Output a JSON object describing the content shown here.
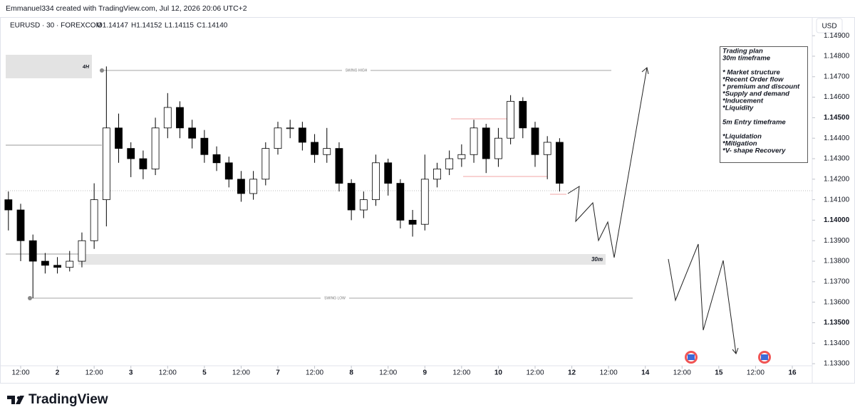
{
  "watermark": "Emmanuel334 created with TradingView.com, Jul 12, 2026 20:06 UTC+2",
  "symbol": "EURUSD · 30 · FOREXCOM",
  "ohlc": [
    "O1.14147",
    "H1.14152",
    "L1.14115",
    "C1.14140"
  ],
  "currency": "USD",
  "logo": "TradingView",
  "chart_data": {
    "type": "candlestick",
    "ylim": [
      1.13217,
      1.1497
    ],
    "yticks": [
      {
        "value": 1.149,
        "label": "1.14900"
      },
      {
        "value": 1.148,
        "label": "1.14800"
      },
      {
        "value": 1.147,
        "label": "1.14700"
      },
      {
        "value": 1.146,
        "label": "1.14600"
      },
      {
        "value": 1.145,
        "label": "1.14500"
      },
      {
        "value": 1.144,
        "label": "1.14400"
      },
      {
        "value": 1.143,
        "label": "1.14300"
      },
      {
        "value": 1.142,
        "label": "1.14200"
      },
      {
        "value": 1.141,
        "label": "1.14100"
      },
      {
        "value": 1.14,
        "label": "1.14000"
      },
      {
        "value": 1.139,
        "label": "1.13900"
      },
      {
        "value": 1.138,
        "label": "1.13800"
      },
      {
        "value": 1.137,
        "label": "1.13700"
      },
      {
        "value": 1.136,
        "label": "1.13600"
      },
      {
        "value": 1.135,
        "label": "1.13500"
      },
      {
        "value": 1.134,
        "label": "1.13400"
      },
      {
        "value": 1.133,
        "label": "1.13300"
      }
    ],
    "xlim": [
      -4.9,
      257.9
    ],
    "xticks": [
      {
        "value": 0,
        "label": "12:00"
      },
      {
        "value": 12,
        "label": "2"
      },
      {
        "value": 24,
        "label": "12:00"
      },
      {
        "value": 36,
        "label": "3"
      },
      {
        "value": 48,
        "label": "12:00"
      },
      {
        "value": 60,
        "label": "5"
      },
      {
        "value": 72,
        "label": "12:00"
      },
      {
        "value": 84,
        "label": "7"
      },
      {
        "value": 96,
        "label": "12:00"
      },
      {
        "value": 108,
        "label": "8"
      },
      {
        "value": 120,
        "label": "12:00"
      },
      {
        "value": 132,
        "label": "9"
      },
      {
        "value": 144,
        "label": "12:00"
      },
      {
        "value": 156,
        "label": "10"
      },
      {
        "value": 168,
        "label": "12:00"
      },
      {
        "value": 180,
        "label": "12"
      },
      {
        "value": 192,
        "label": "12:00"
      },
      {
        "value": 204,
        "label": "14"
      },
      {
        "value": 216,
        "label": "12:00"
      },
      {
        "value": 228,
        "label": "15"
      },
      {
        "value": 240,
        "label": "12:00"
      },
      {
        "value": 252,
        "label": "16"
      }
    ],
    "x": [
      -4,
      0,
      4,
      8,
      12,
      16,
      20,
      24,
      28,
      32,
      36,
      40,
      44,
      48,
      52,
      56,
      60,
      64,
      68,
      72,
      76,
      80,
      84,
      88,
      92,
      96,
      100,
      104,
      108,
      112,
      116,
      120,
      124,
      128,
      132,
      136,
      140,
      144,
      148,
      152,
      156,
      160,
      164,
      168,
      172,
      176
    ],
    "open": [
      1.141,
      1.1405,
      1.139,
      1.138,
      1.1378,
      1.1377,
      1.138,
      1.139,
      1.141,
      1.1445,
      1.1435,
      1.143,
      1.1425,
      1.1445,
      1.1455,
      1.1445,
      1.144,
      1.1432,
      1.1428,
      1.142,
      1.1413,
      1.142,
      1.1435,
      1.1445,
      1.1445,
      1.1438,
      1.1432,
      1.1435,
      1.1418,
      1.1405,
      1.141,
      1.1428,
      1.1418,
      1.14,
      1.1398,
      1.142,
      1.1425,
      1.143,
      1.1432,
      1.1445,
      1.143,
      1.144,
      1.1458,
      1.1445,
      1.1432,
      1.1438
    ],
    "high": [
      1.1414,
      1.1408,
      1.1393,
      1.1384,
      1.1382,
      1.1385,
      1.1394,
      1.1418,
      1.1475,
      1.1452,
      1.1438,
      1.1434,
      1.145,
      1.1462,
      1.1458,
      1.1449,
      1.1444,
      1.1436,
      1.1431,
      1.1424,
      1.1424,
      1.1438,
      1.1448,
      1.1449,
      1.1448,
      1.1442,
      1.1445,
      1.1438,
      1.142,
      1.1414,
      1.1432,
      1.143,
      1.142,
      1.1405,
      1.1432,
      1.1428,
      1.1434,
      1.1437,
      1.1449,
      1.1447,
      1.1445,
      1.1461,
      1.146,
      1.1448,
      1.1441,
      1.144
    ],
    "low": [
      1.1395,
      1.138,
      1.1362,
      1.1374,
      1.1374,
      1.1375,
      1.1377,
      1.1386,
      1.1397,
      1.1428,
      1.1421,
      1.142,
      1.1422,
      1.144,
      1.144,
      1.1435,
      1.1428,
      1.1424,
      1.1416,
      1.1409,
      1.141,
      1.1417,
      1.1432,
      1.144,
      1.1434,
      1.1428,
      1.1428,
      1.1414,
      1.14,
      1.1401,
      1.1407,
      1.1412,
      1.1396,
      1.1392,
      1.1395,
      1.1416,
      1.1422,
      1.1426,
      1.1428,
      1.1423,
      1.1426,
      1.1437,
      1.144,
      1.1426,
      1.142,
      1.1414
    ],
    "close": [
      1.1405,
      1.139,
      1.138,
      1.1378,
      1.1377,
      1.138,
      1.139,
      1.141,
      1.1445,
      1.1435,
      1.143,
      1.1425,
      1.1445,
      1.1455,
      1.1445,
      1.144,
      1.1432,
      1.1428,
      1.142,
      1.1413,
      1.142,
      1.1435,
      1.1445,
      1.1445,
      1.1438,
      1.1432,
      1.1435,
      1.1418,
      1.1405,
      1.141,
      1.1428,
      1.1418,
      1.14,
      1.1398,
      1.142,
      1.1425,
      1.143,
      1.1432,
      1.1445,
      1.143,
      1.144,
      1.1458,
      1.1445,
      1.1432,
      1.1438,
      1.1418
    ],
    "up_color": "#ffffff",
    "down_color": "#000000",
    "annotations": {
      "zone_4h": "4H",
      "swing_high": "SWING HIGH",
      "zone_30m": "30m",
      "swing_low": "SWING LOW"
    },
    "plan": [
      [
        "Trading plan",
        "30m timeframe"
      ],
      [
        "* Market structure",
        "*Recent Order flow",
        "* premium and discount",
        "*Supply and demand",
        "*Inducement",
        "*Liquidity"
      ],
      [
        "5m Entry timeframe"
      ],
      [
        "*Liquidation",
        "*Mitigation",
        "*V- shape Recovery"
      ]
    ]
  }
}
